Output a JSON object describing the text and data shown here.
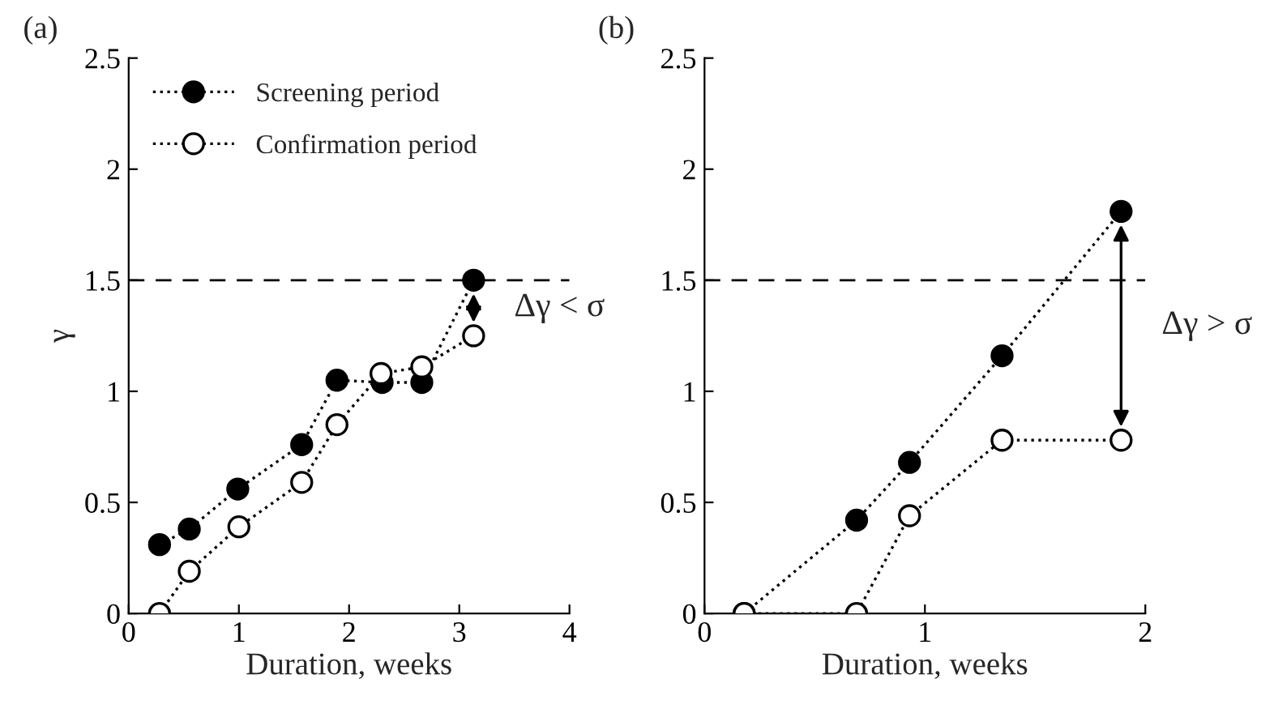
{
  "chart_data": [
    {
      "type": "line",
      "title": "(a)",
      "xlabel": "Duration, weeks",
      "ylabel": "γ",
      "marker": "circle",
      "line_style": "dotted",
      "legend": "top left",
      "grid": false,
      "xlim": [
        0,
        4
      ],
      "xticks": [
        0,
        1,
        2,
        3,
        4
      ],
      "ylim": [
        0,
        2.5
      ],
      "yticks": [
        0,
        0.5,
        1,
        1.5,
        2,
        2.5
      ],
      "series": [
        {
          "name": "Screening period",
          "color": "#000000",
          "x": [
            0.28,
            0.55,
            0.99,
            1.57,
            1.89,
            2.3,
            2.66,
            3.13
          ],
          "values": [
            0.31,
            0.38,
            0.56,
            0.76,
            1.05,
            1.04,
            1.04,
            1.5
          ]
        },
        {
          "name": "Confirmation period",
          "color": "#ffffff",
          "x": [
            0.28,
            0.55,
            1.0,
            1.57,
            1.89,
            2.29,
            2.66,
            3.13
          ],
          "values": [
            0,
            0.19,
            0.39,
            0.59,
            0.85,
            1.08,
            1.11,
            1.25
          ]
        }
      ],
      "ref_lines": [
        {
          "axis": "y",
          "value": 1.5,
          "line_style": "dashed",
          "color": "#000000"
        }
      ],
      "annotations": [
        "Δγ < σ"
      ]
    },
    {
      "type": "line",
      "title": "(b)",
      "xlabel": "Duration, weeks",
      "marker": "circle",
      "line_style": "dotted",
      "legend": false,
      "grid": false,
      "xlim": [
        0,
        2
      ],
      "xticks": [
        0,
        1,
        2
      ],
      "ylim": [
        0,
        2.5
      ],
      "yticks": [
        0,
        0.5,
        1,
        1.5,
        2,
        2.5
      ],
      "series": [
        {
          "color": "#000000",
          "x": [
            0.18,
            0.69,
            0.93,
            1.35,
            1.89
          ],
          "values": [
            0,
            0.42,
            0.68,
            1.16,
            1.81
          ]
        },
        {
          "color": "#ffffff",
          "x": [
            0.18,
            0.69,
            0.93,
            1.35,
            1.89
          ],
          "values": [
            0,
            0,
            0.44,
            0.78,
            0.78
          ]
        }
      ],
      "ref_lines": [
        {
          "axis": "y",
          "value": 1.5,
          "line_style": "dashed",
          "color": "#000000"
        }
      ],
      "annotations": [
        "Δγ > σ"
      ]
    }
  ]
}
